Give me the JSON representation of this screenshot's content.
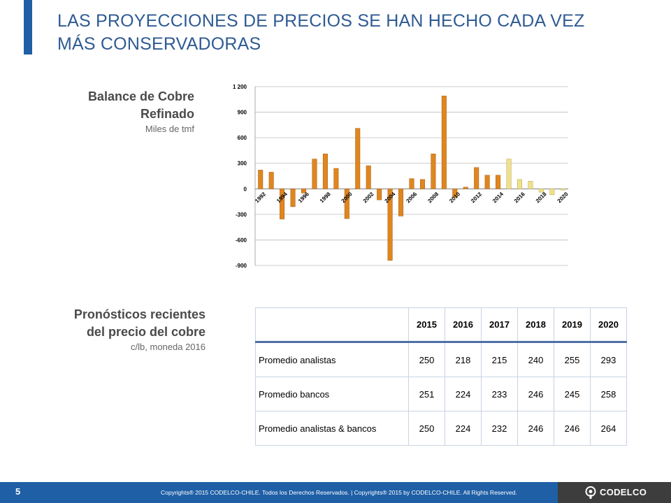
{
  "header": {
    "title_line1": "LAS PROYECCIONES DE PRECIOS SE HAN HECHO CADA VEZ",
    "title_line2": "MÁS CONSERVADORAS"
  },
  "balance_section": {
    "title_line1": "Balance de Cobre",
    "title_line2": "Refinado",
    "subtitle": "Miles de tmf"
  },
  "forecast_section": {
    "title_line1": "Pronósticos recientes",
    "title_line2": "del precio del cobre",
    "subtitle": "c/lb, moneda 2016"
  },
  "chart_data": {
    "type": "bar",
    "title": "",
    "xlabel": "",
    "ylabel": "",
    "ylim": [
      -900,
      1200
    ],
    "yticks": [
      -900,
      -600,
      -300,
      0,
      300,
      600,
      900,
      1200
    ],
    "ytick_labels": [
      "-900",
      "-600",
      "-300",
      "0",
      "300",
      "600",
      "900",
      "1 200"
    ],
    "xtick_labels": [
      "1992",
      "1994",
      "1996",
      "1998",
      "2000",
      "2002",
      "2004",
      "2006",
      "2008",
      "2010",
      "2012",
      "2014",
      "2016",
      "2018",
      "2020"
    ],
    "grid": true,
    "colors": {
      "historical": "#e0861f",
      "forecast": "#efe08f"
    },
    "forecast_from": 2015,
    "x": [
      1992,
      1993,
      1994,
      1995,
      1996,
      1997,
      1998,
      1999,
      2000,
      2001,
      2002,
      2003,
      2004,
      2005,
      2006,
      2007,
      2008,
      2009,
      2010,
      2011,
      2012,
      2013,
      2014,
      2015,
      2016,
      2017,
      2018,
      2019,
      2020
    ],
    "values": [
      220,
      195,
      -355,
      -210,
      -50,
      350,
      410,
      240,
      -350,
      710,
      270,
      -130,
      -840,
      -320,
      120,
      110,
      410,
      1090,
      -100,
      20,
      250,
      160,
      160,
      350,
      110,
      90,
      -40,
      -70,
      -15
    ]
  },
  "price_table": {
    "years": [
      "2015",
      "2016",
      "2017",
      "2018",
      "2019",
      "2020"
    ],
    "rows": [
      {
        "label": "Promedio analistas",
        "values": [
          "250",
          "218",
          "215",
          "240",
          "255",
          "293"
        ]
      },
      {
        "label": "Promedio bancos",
        "values": [
          "251",
          "224",
          "233",
          "246",
          "245",
          "258"
        ]
      },
      {
        "label": "Promedio analistas & bancos",
        "values": [
          "250",
          "224",
          "232",
          "246",
          "246",
          "264"
        ]
      }
    ]
  },
  "footer": {
    "page_number": "5",
    "copyright": "Copyrights® 2015 CODELCO-CHILE. Todos los Derechos Reservados. | Copyrights® 2015 by CODELCO-CHILE. All Rights Reserved.",
    "logo_text": "CODELCO",
    "logo_icon": "codelco-logo-icon"
  }
}
